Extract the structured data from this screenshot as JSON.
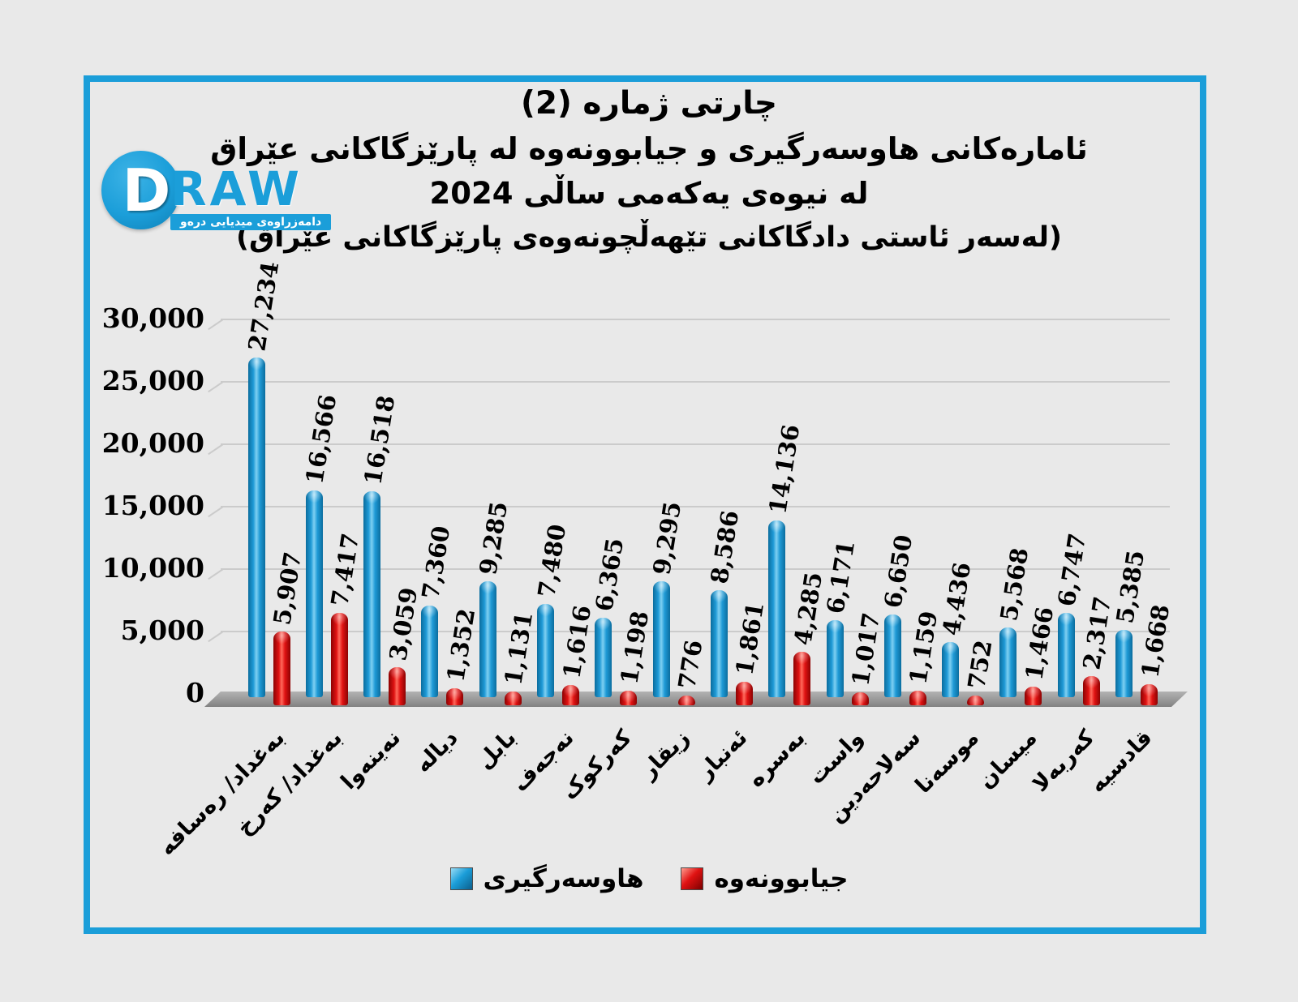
{
  "branding": {
    "logo_d": "D",
    "logo_raw": "RAW",
    "logo_banner": "دامەزراوەی میدیایی درەو"
  },
  "title": {
    "line1": "چارتی ژماره (2)",
    "line2": "ئامارەکانی هاوسەرگیری و جیابوونەوه له پارێزگاکانی عێراق",
    "line3": "له نیوەی یەکەمی ساڵی 2024",
    "line4": "(لەسەر ئاستی دادگاکانی تێهەڵچونەوەی پارێزگاکانی عێراق)"
  },
  "chart_data": {
    "type": "bar",
    "title": "چارتی ژماره (2) - ئامارەکانی هاوسەرگیری و جیابوونەوه له پارێزگاکانی عێراق - له نیوەی یەکەمی ساڵی 2024",
    "categories": [
      "بەغداد/ رەسافە",
      "بەغداد/ کەرخ",
      "نەینەوا",
      "دیالە",
      "بابل",
      "نەجەف",
      "کەرکوک",
      "زیقار",
      "ئەنبار",
      "بەسرە",
      "واست",
      "سەلاحەدین",
      "موسەنا",
      "میسان",
      "کەربەلا",
      "قادسیە"
    ],
    "series": [
      {
        "name": "هاوسەرگیری",
        "color": "#1b9ed9",
        "values": [
          27234,
          16566,
          16518,
          7360,
          9285,
          7480,
          6365,
          9295,
          8586,
          14136,
          6171,
          6650,
          4436,
          5568,
          6747,
          5385
        ]
      },
      {
        "name": "جیابوونەوه",
        "color": "#e01212",
        "values": [
          5907,
          7417,
          3059,
          1352,
          1131,
          1616,
          1198,
          776,
          1861,
          4285,
          1017,
          1159,
          752,
          1466,
          2317,
          1668
        ]
      }
    ],
    "y_axis": {
      "ticks": [
        "30,000",
        "25,000",
        "20,000",
        "15,000",
        "10,000",
        "5,000",
        "0"
      ],
      "min": 0,
      "max": 30000,
      "step": 5000
    },
    "grid": true,
    "legend_position": "bottom",
    "colors": {
      "frame_border": "#1b9ed9",
      "background": "#e9e9e9",
      "gridline": "#cbcbcb",
      "floor": "#8a8a8a"
    }
  }
}
